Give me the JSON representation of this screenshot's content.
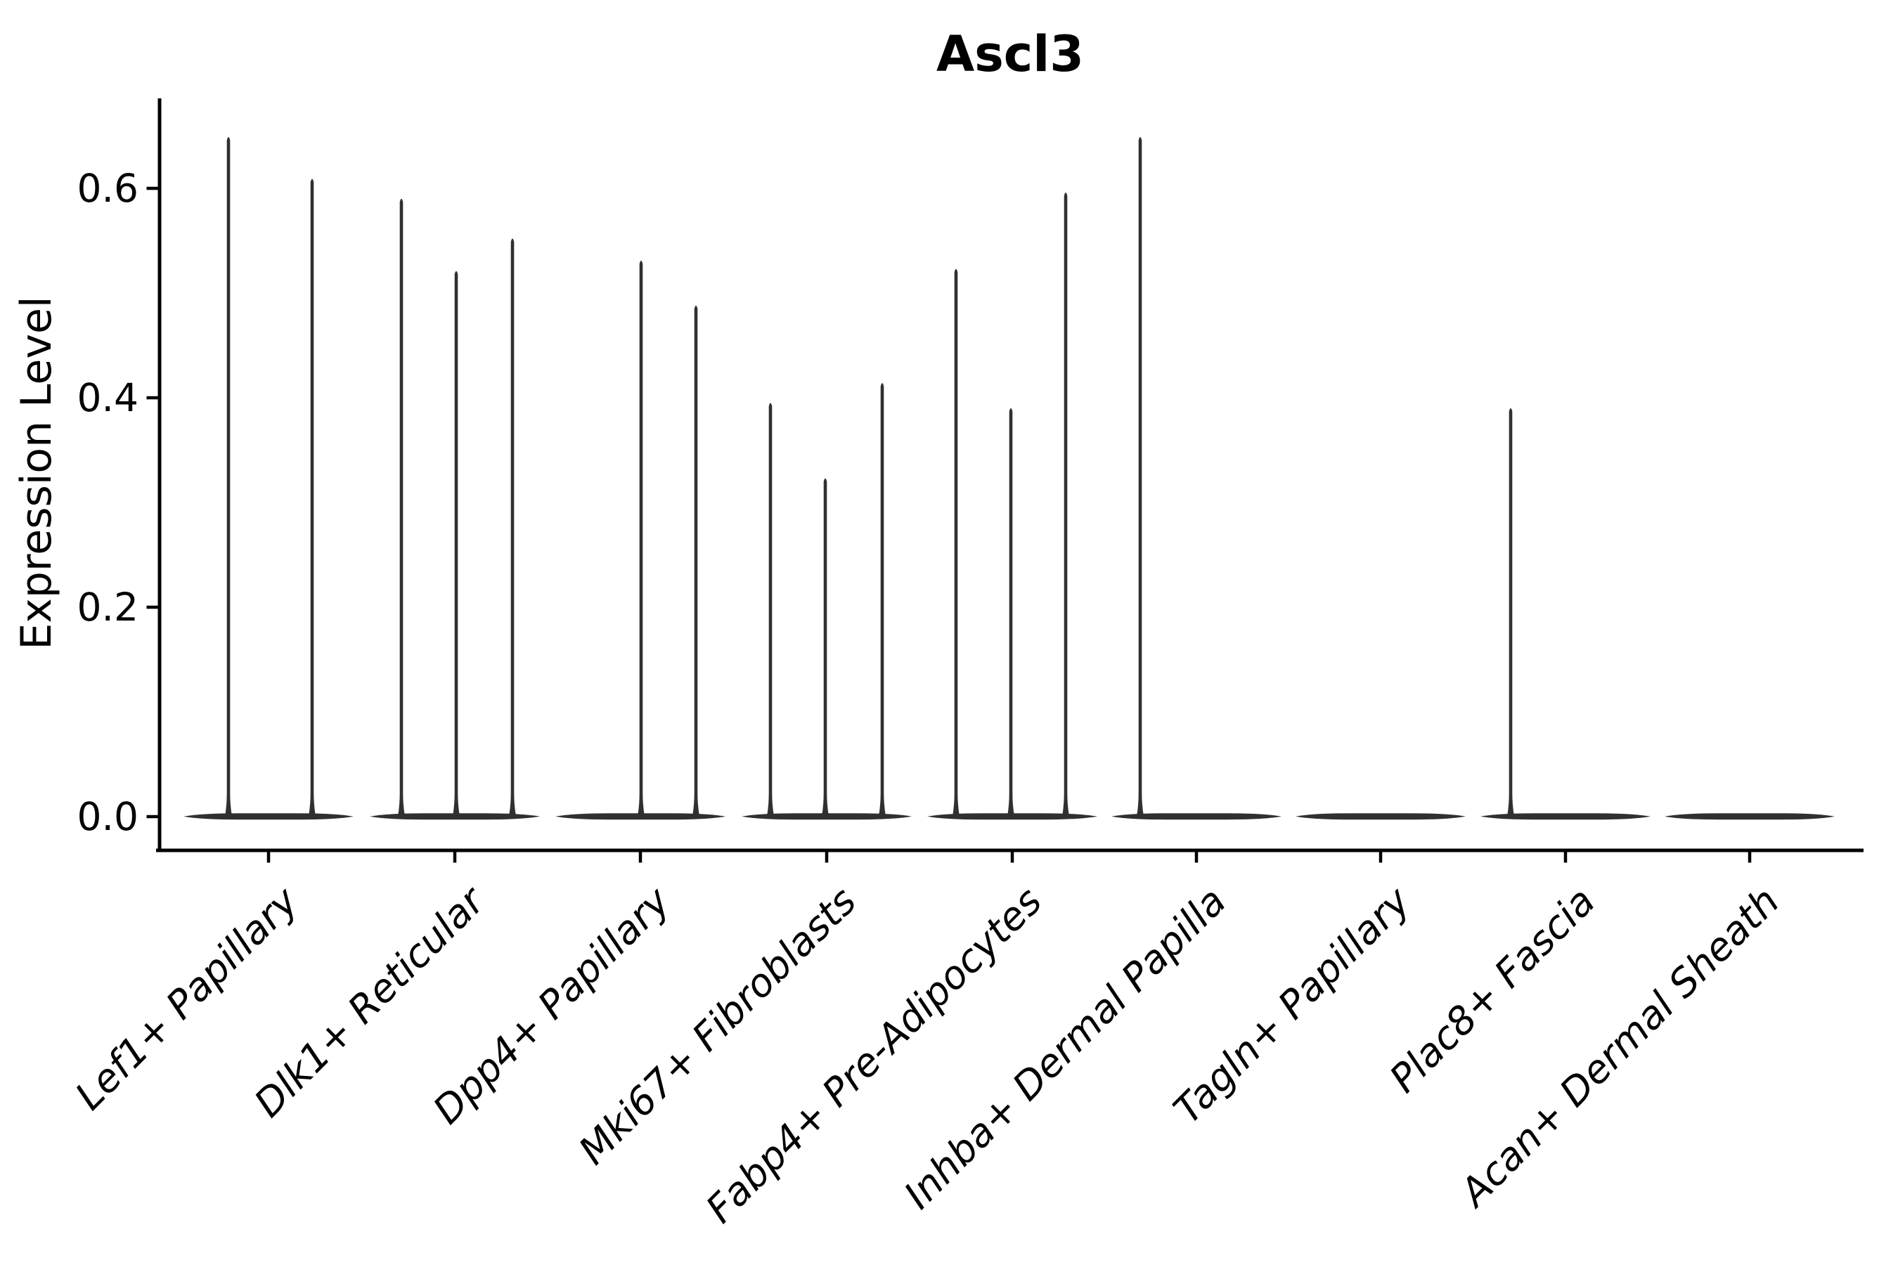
{
  "figure": {
    "title": "Ascl3",
    "ylabel": "Expression Level"
  },
  "chart_data": {
    "type": "violin",
    "title": "Ascl3",
    "xlabel": "",
    "ylabel": "Expression Level",
    "ylim": [
      -0.034,
      0.687
    ],
    "yticks": [
      0.0,
      0.2,
      0.4,
      0.6
    ],
    "ytick_labels": [
      "0.0",
      "0.2",
      "0.4",
      "0.6"
    ],
    "grid": false,
    "legend": "none",
    "background": "#ffffff",
    "categories": [
      "Lef1+ Papillary",
      "Dlk1+ Reticular",
      "Dpp4+ Papillary",
      "Mki67+ Fibroblasts",
      "Fabp4+ Pre-Adipocytes",
      "Inhba+ Dermal Papilla",
      "Tagln+ Papillary",
      "Plac8+ Fascia",
      "Acan+ Dermal Sheath"
    ],
    "series": [
      {
        "category": "Lef1+ Papillary",
        "baseline_value": 0.0,
        "spikes": [
          {
            "dx": -57,
            "max": 0.652
          },
          {
            "dx": 62,
            "max": 0.612
          }
        ]
      },
      {
        "category": "Dlk1+ Reticular",
        "baseline_value": 0.0,
        "spikes": [
          {
            "dx": -76,
            "max": 0.593
          },
          {
            "dx": 2,
            "max": 0.524
          },
          {
            "dx": 82,
            "max": 0.555
          }
        ]
      },
      {
        "category": "Dpp4+ Papillary",
        "baseline_value": 0.0,
        "spikes": [
          {
            "dx": 1,
            "max": 0.534
          },
          {
            "dx": 79,
            "max": 0.491
          }
        ]
      },
      {
        "category": "Mki67+ Fibroblasts",
        "baseline_value": 0.0,
        "spikes": [
          {
            "dx": -80,
            "max": 0.398
          },
          {
            "dx": -2,
            "max": 0.326
          },
          {
            "dx": 79,
            "max": 0.417
          }
        ]
      },
      {
        "category": "Fabp4+ Pre-Adipocytes",
        "baseline_value": 0.0,
        "spikes": [
          {
            "dx": -80,
            "max": 0.526
          },
          {
            "dx": -2,
            "max": 0.393
          },
          {
            "dx": 76,
            "max": 0.599
          }
        ]
      },
      {
        "category": "Inhba+ Dermal Papilla",
        "baseline_value": 0.0,
        "spikes": [
          {
            "dx": -80,
            "max": 0.652
          }
        ]
      },
      {
        "category": "Tagln+ Papillary",
        "baseline_value": 0.0,
        "spikes": []
      },
      {
        "category": "Plac8+ Fascia",
        "baseline_value": 0.0,
        "spikes": [
          {
            "dx": -78,
            "max": 0.393
          }
        ]
      },
      {
        "category": "Acan+ Dermal Sheath",
        "baseline_value": 0.0,
        "spikes": []
      }
    ],
    "style": {
      "violin_color": "#303030",
      "axis_color": "#000000",
      "text_color": "#000000",
      "background_color": "#ffffff"
    }
  }
}
